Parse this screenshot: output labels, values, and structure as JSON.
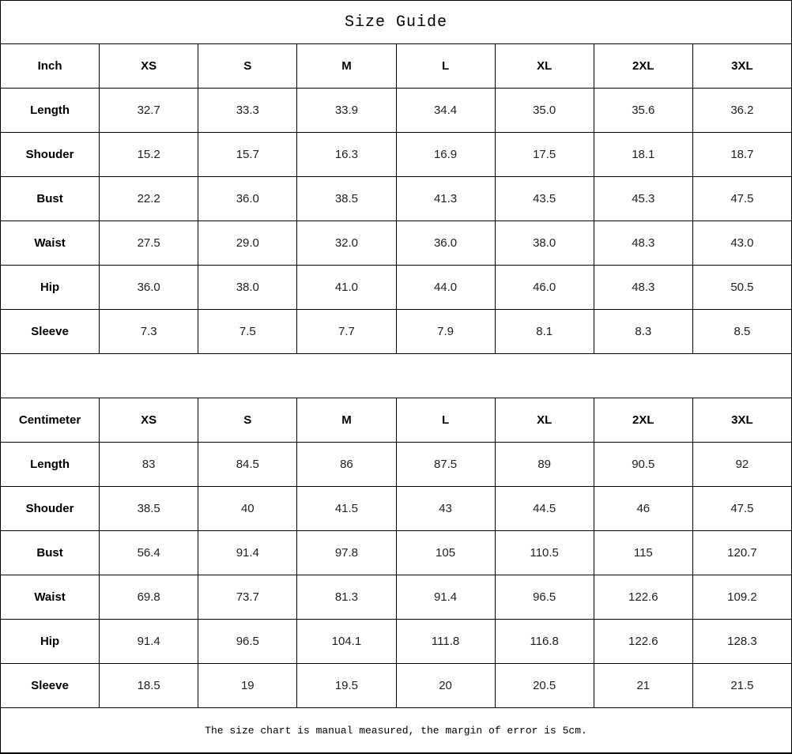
{
  "title": "Size Guide",
  "footer_note": "The size chart is manual measured, the margin of error is 5cm.",
  "sizes": [
    "XS",
    "S",
    "M",
    "L",
    "XL",
    "2XL",
    "3XL"
  ],
  "sections": [
    {
      "unit_label": "Inch",
      "rows": [
        {
          "label": "Length",
          "values": [
            "32.7",
            "33.3",
            "33.9",
            "34.4",
            "35.0",
            "35.6",
            "36.2"
          ]
        },
        {
          "label": "Shouder",
          "values": [
            "15.2",
            "15.7",
            "16.3",
            "16.9",
            "17.5",
            "18.1",
            "18.7"
          ]
        },
        {
          "label": "Bust",
          "values": [
            "22.2",
            "36.0",
            "38.5",
            "41.3",
            "43.5",
            "45.3",
            "47.5"
          ]
        },
        {
          "label": "Waist",
          "values": [
            "27.5",
            "29.0",
            "32.0",
            "36.0",
            "38.0",
            "48.3",
            "43.0"
          ]
        },
        {
          "label": "Hip",
          "values": [
            "36.0",
            "38.0",
            "41.0",
            "44.0",
            "46.0",
            "48.3",
            "50.5"
          ]
        },
        {
          "label": "Sleeve",
          "values": [
            "7.3",
            "7.5",
            "7.7",
            "7.9",
            "8.1",
            "8.3",
            "8.5"
          ]
        }
      ]
    },
    {
      "unit_label": "Centimeter",
      "rows": [
        {
          "label": "Length",
          "values": [
            "83",
            "84.5",
            "86",
            "87.5",
            "89",
            "90.5",
            "92"
          ]
        },
        {
          "label": "Shouder",
          "values": [
            "38.5",
            "40",
            "41.5",
            "43",
            "44.5",
            "46",
            "47.5"
          ]
        },
        {
          "label": "Bust",
          "values": [
            "56.4",
            "91.4",
            "97.8",
            "105",
            "110.5",
            "115",
            "120.7"
          ]
        },
        {
          "label": "Waist",
          "values": [
            "69.8",
            "73.7",
            "81.3",
            "91.4",
            "96.5",
            "122.6",
            "109.2"
          ]
        },
        {
          "label": "Hip",
          "values": [
            "91.4",
            "96.5",
            "104.1",
            "111.8",
            "116.8",
            "122.6",
            "128.3"
          ]
        },
        {
          "label": "Sleeve",
          "values": [
            "18.5",
            "19",
            "19.5",
            "20",
            "20.5",
            "21",
            "21.5"
          ]
        }
      ]
    }
  ],
  "colors": {
    "border": "#000000",
    "background": "#ffffff",
    "text": "#000000"
  }
}
